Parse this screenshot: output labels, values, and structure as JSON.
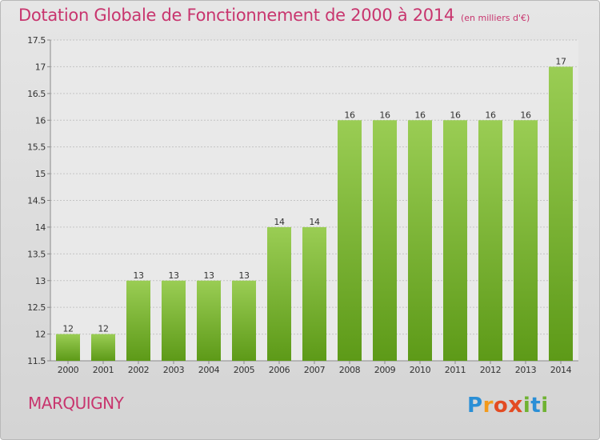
{
  "title": "Dotation Globale de Fonctionnement de 2000 à 2014",
  "unit_note": "(en milliers d'€)",
  "commune": "MARQUIGNY",
  "logo_text": "Proxiti",
  "colors": {
    "title": "#c8356e",
    "bar_top": "#9acd54",
    "bar_bottom": "#5d9a18",
    "grid": "#c4c4c4"
  },
  "chart_data": {
    "type": "bar",
    "categories": [
      "2000",
      "2001",
      "2002",
      "2003",
      "2004",
      "2005",
      "2006",
      "2007",
      "2008",
      "2009",
      "2010",
      "2011",
      "2012",
      "2013",
      "2014"
    ],
    "values": [
      12,
      12,
      13,
      13,
      13,
      13,
      14,
      14,
      16,
      16,
      16,
      16,
      16,
      16,
      17
    ],
    "data_labels": [
      "12",
      "12",
      "13",
      "13",
      "13",
      "13",
      "14",
      "14",
      "16",
      "16",
      "16",
      "16",
      "16",
      "16",
      "17"
    ],
    "ylim": [
      11.5,
      17.5
    ],
    "yticks": [
      11.5,
      12,
      12.5,
      13,
      13.5,
      14,
      14.5,
      15,
      15.5,
      16,
      16.5,
      17,
      17.5
    ],
    "ytick_labels": [
      "11.5",
      "12",
      "12.5",
      "13",
      "13.5",
      "14",
      "14.5",
      "15",
      "15.5",
      "16",
      "16.5",
      "17",
      "17.5"
    ],
    "grid": true,
    "xlabel": "",
    "ylabel": ""
  }
}
